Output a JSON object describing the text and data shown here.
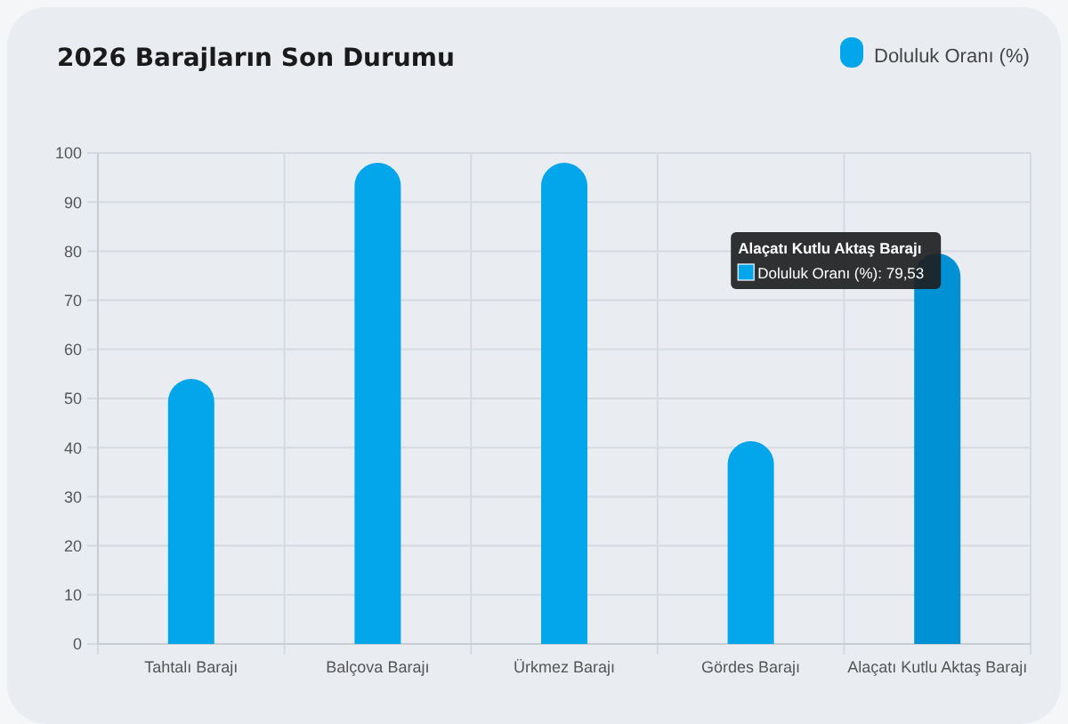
{
  "chart_data": {
    "type": "bar",
    "title": "2026 Barajların Son Durumu",
    "categories": [
      "Tahtalı Barajı",
      "Balçova Barajı",
      "Ürkmez Barajı",
      "Gördes Barajı",
      "Alaçatı Kutlu Aktaş Barajı"
    ],
    "series": [
      {
        "name": "Doluluk Oranı (%)",
        "color": "#03a5eb",
        "colors": [
          "#03a5eb",
          "#03a5eb",
          "#03a5eb",
          "#03a5eb",
          "#0091d5"
        ],
        "values": [
          54,
          98,
          98,
          41.3,
          79.53
        ]
      }
    ],
    "ylim": [
      0,
      100
    ],
    "yticks": [
      0,
      10,
      20,
      30,
      40,
      50,
      60,
      70,
      80,
      90,
      100
    ],
    "grid": true,
    "legend": "top right",
    "annotations": [
      {
        "text": "Alaçatı Kutlu Aktaş Barajı\nDoluluk Oranı (%): 79,53",
        "x": "Alaçatı Kutlu Aktaş Barajı",
        "y": 79.53
      }
    ]
  }
}
